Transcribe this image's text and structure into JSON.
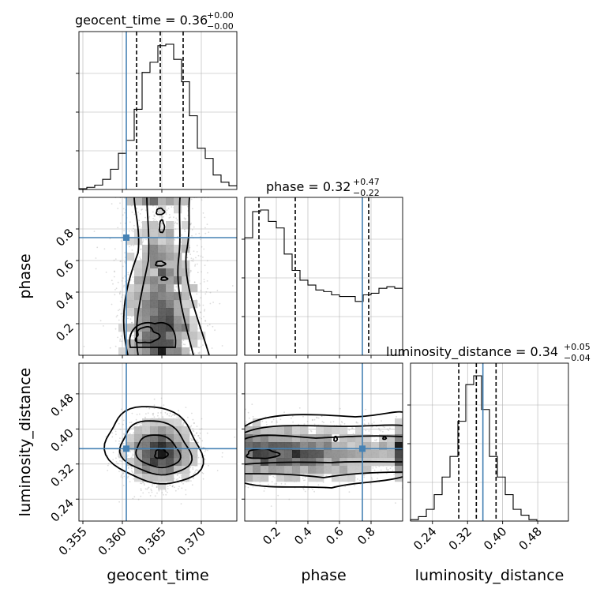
{
  "chart_data": {
    "type": "corner",
    "parameters": [
      {
        "name": "geocent_time",
        "range": [
          0.3545,
          0.3745
        ],
        "ticks": [
          0.355,
          0.36,
          0.365,
          0.37
        ],
        "tick_labels": [
          "0.355",
          "0.360",
          "0.365",
          "0.370"
        ],
        "truth": 0.3605,
        "quantiles": [
          0.3618,
          0.3648,
          0.3677
        ],
        "title": {
          "main": "geocent_time = 0.36",
          "plus": "+0.00",
          "minus": "−0.00"
        },
        "hist": {
          "edges_start": 0.3545,
          "bin_width": 0.001,
          "counts": [
            1,
            3,
            6,
            14,
            28,
            50,
            68,
            111,
            162,
            176,
            199,
            201,
            180,
            149,
            102,
            57,
            43,
            20,
            10,
            5
          ]
        }
      },
      {
        "name": "phase",
        "range": [
          0.0,
          1.0
        ],
        "ticks": [
          0.2,
          0.4,
          0.6,
          0.8
        ],
        "tick_labels": [
          "0.2",
          "0.4",
          "0.6",
          "0.8"
        ],
        "truth": 0.745,
        "quantiles": [
          0.09,
          0.32,
          0.785
        ],
        "title": {
          "main": "phase = 0.32",
          "plus": "+0.47",
          "minus": "−0.22"
        },
        "hist": {
          "edges_start": 0.0,
          "bin_width": 0.05,
          "counts": [
            72,
            88,
            89,
            82,
            78,
            62,
            52,
            46,
            43,
            40,
            39,
            37,
            36,
            36,
            33,
            37,
            38,
            41,
            42,
            41
          ]
        }
      },
      {
        "name": "luminosity_distance",
        "range": [
          0.19,
          0.55
        ],
        "ticks": [
          0.24,
          0.32,
          0.4,
          0.48
        ],
        "tick_labels": [
          "0.24",
          "0.32",
          "0.40",
          "0.48"
        ],
        "truth": 0.355,
        "quantiles": [
          0.3,
          0.34,
          0.385
        ],
        "title": {
          "main": "luminosity_distance = 0.34",
          "plus": "+0.05",
          "minus": "−0.04"
        },
        "hist": {
          "edges_start": 0.19,
          "bin_width": 0.018,
          "counts": [
            1,
            3,
            8,
            18,
            30,
            44,
            68,
            93,
            99,
            76,
            44,
            30,
            18,
            8,
            4,
            1,
            0,
            0,
            0,
            0
          ]
        }
      }
    ],
    "truth_color": "#4682b4",
    "grid": true,
    "hist_axes_show_ytick_labels": false
  }
}
